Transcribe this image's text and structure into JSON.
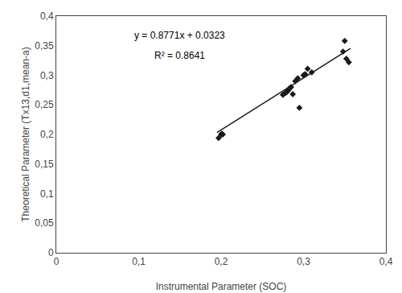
{
  "chart_data": {
    "type": "scatter",
    "xlabel": "Instrumental Parameter (SOC)",
    "ylabel": "Theoretical Parameter (Tx13,d1,mean-a)",
    "series": [
      {
        "type": "scatter",
        "marker": "diamond",
        "color": "#1a1a1a",
        "x": [
          0.197,
          0.2,
          0.201,
          0.202,
          0.275,
          0.278,
          0.28,
          0.282,
          0.283,
          0.285,
          0.287,
          0.29,
          0.293,
          0.295,
          0.3,
          0.302,
          0.305,
          0.31,
          0.348,
          0.35,
          0.352,
          0.355
        ],
        "values": [
          0.194,
          0.2,
          0.201,
          0.2,
          0.267,
          0.27,
          0.272,
          0.275,
          0.278,
          0.28,
          0.268,
          0.29,
          0.295,
          0.245,
          0.3,
          0.302,
          0.311,
          0.305,
          0.34,
          0.358,
          0.328,
          0.322
        ]
      },
      {
        "type": "line",
        "line_style": "solid",
        "color": "#1a1a1a",
        "x": [
          0.195,
          0.357
        ],
        "values": [
          0.2033345,
          0.3454247
        ]
      }
    ],
    "annotations": [
      "y = 0.8771x + 0.0323",
      "R² = 0.8641"
    ],
    "xlim": [
      0,
      0.4
    ],
    "ylim": [
      0,
      0.4
    ],
    "xticks": [
      0,
      {
        "value": 0.1,
        "label": "0,1"
      },
      {
        "value": 0.2,
        "label": "0,2"
      },
      {
        "value": 0.3,
        "label": "0,3"
      },
      {
        "value": 0.4,
        "label": "0,4"
      }
    ],
    "yticks": [
      0,
      {
        "value": 0.05,
        "label": "0,05"
      },
      {
        "value": 0.1,
        "label": "0,1"
      },
      {
        "value": 0.15,
        "label": "0,15"
      },
      {
        "value": 0.2,
        "label": "0,2"
      },
      {
        "value": 0.25,
        "label": "0,25"
      },
      {
        "value": 0.3,
        "label": "0,3"
      },
      {
        "value": 0.35,
        "label": "0,35"
      },
      {
        "value": 0.4,
        "label": "0,4"
      }
    ],
    "grid": false
  }
}
